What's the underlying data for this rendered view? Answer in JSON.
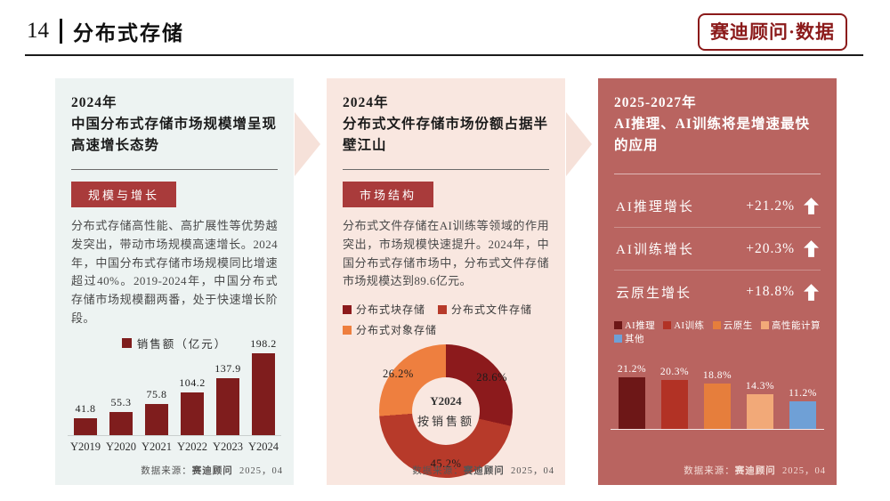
{
  "header": {
    "page_number": "14",
    "section_title": "分布式存储",
    "badge": "赛迪顾问·数据"
  },
  "source": {
    "prefix": "数据来源：",
    "org": "赛迪顾问",
    "date": "2025，04"
  },
  "panel1": {
    "year": "2024年",
    "title": "中国分布式存储市场规模增呈现高速增长态势",
    "tag": "规模与增长",
    "body": "分布式存储高性能、高扩展性等优势越发突出，带动市场规模高速增长。2024年，中国分布式存储市场规模同比增速超过40%。2019-2024年，中国分布式存储市场规模翻两番，处于快速增长阶段。"
  },
  "panel2": {
    "year": "2024年",
    "title": "分布式文件存储市场份额占据半壁江山",
    "tag": "市场结构",
    "body": "分布式文件存储在AI训练等领域的作用突出，市场规模快速提升。2024年，中国分布式存储市场中，分布式文件存储市场规模达到89.6亿元。"
  },
  "panel3": {
    "year": "2025-2027年",
    "title": "AI推理、AI训练将是增速最快的应用",
    "stats": [
      {
        "label": "AI推理增长",
        "value": "+21.2%"
      },
      {
        "label": "AI训练增长",
        "value": "+20.3%"
      },
      {
        "label": "云原生增长",
        "value": "+18.8%"
      }
    ]
  },
  "chart_data": [
    {
      "type": "bar",
      "categories": [
        "Y2019",
        "Y2020",
        "Y2021",
        "Y2022",
        "Y2023",
        "Y2024"
      ],
      "values": [
        41.8,
        55.3,
        75.8,
        104.2,
        137.9,
        198.2
      ],
      "value_labels": [
        "41.8",
        "55.3",
        "75.8",
        "104.2",
        "137.9",
        "198.2"
      ],
      "legend": "销售额（亿元）",
      "bar_color": "#7f1d1d",
      "ylim": [
        0,
        210
      ],
      "grid": false
    },
    {
      "type": "pie",
      "donut": true,
      "labels": [
        "分布式块存储",
        "分布式文件存储",
        "分布式对象存储"
      ],
      "values": [
        28.6,
        45.2,
        26.2
      ],
      "value_labels": [
        "28.6%",
        "45.2%",
        "26.2%"
      ],
      "colors": [
        "#8c1a1c",
        "#b73a2a",
        "#ee7f3f"
      ],
      "center_line1": "Y2024",
      "center_line2": "按销售额",
      "legend_position": "top"
    },
    {
      "type": "bar",
      "categories": [
        "AI推理",
        "AI训练",
        "云原生",
        "高性能计算",
        "其他"
      ],
      "values": [
        21.2,
        20.3,
        18.8,
        14.3,
        11.2
      ],
      "value_labels": [
        "21.2%",
        "20.3%",
        "18.8%",
        "14.3%",
        "11.2%"
      ],
      "colors": [
        "#6d1717",
        "#b23225",
        "#e67e3c",
        "#f2a978",
        "#6fa0d6"
      ],
      "ylim": [
        0,
        24
      ],
      "grid": false
    }
  ]
}
